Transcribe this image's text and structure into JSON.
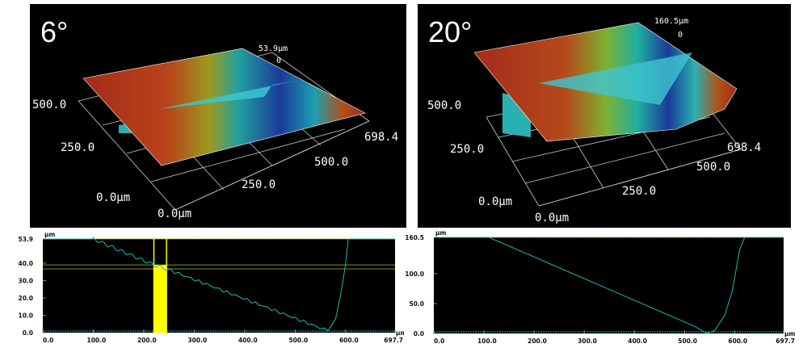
{
  "colors": {
    "surface_high": "#a52a1a",
    "surface_low": "#102a8a",
    "profile_line": "#1fb8b8",
    "cursor": "#ffff00",
    "background": "#000000"
  },
  "panels": [
    {
      "title": "6°",
      "labels": {
        "y_max": "500.0",
        "y_mid": "250.0",
        "y_zero": "0.0µm",
        "x_zero": "0.0µm",
        "x_mid": "250.0",
        "x_500": "500.0",
        "x_max": "698.4",
        "z_max": "53.9µm",
        "z_zero": "0"
      }
    },
    {
      "title": "20°",
      "labels": {
        "y_max": "500.0",
        "y_mid": "250.0",
        "y_zero": "0.0µm",
        "x_zero": "0.0µm",
        "x_mid": "250.0",
        "x_500": "500.0",
        "x_max": "698.4",
        "z_max": "160.5µm",
        "z_zero": "0"
      }
    }
  ],
  "chart_data": [
    {
      "type": "line",
      "ylabel": "µm",
      "xlabel": "µm",
      "xlim": [
        0,
        697.7
      ],
      "ylim": [
        0,
        53.9
      ],
      "x_ticks": [
        "0.0",
        "100.0",
        "200.0",
        "300.0",
        "400.0",
        "500.0",
        "600.0",
        "697.7"
      ],
      "y_ticks": [
        "0.0",
        "10.0",
        "20.0",
        "30.0",
        "40.0",
        "53.9"
      ],
      "y_tick_values": [
        0,
        10,
        20,
        30,
        40,
        53.9
      ],
      "x_tick_values": [
        0,
        100,
        200,
        300,
        400,
        500,
        600,
        697.7
      ],
      "profile": {
        "x": [
          0,
          100,
          220,
          245,
          565,
          580,
          590,
          600,
          605,
          697.7
        ],
        "y": [
          53.9,
          53.9,
          39,
          36.7,
          1,
          8,
          22,
          40,
          53.9,
          53.9
        ]
      },
      "steps": true,
      "cursor_band": [
        220,
        245
      ],
      "cursor_levels": [
        39,
        36.7
      ]
    },
    {
      "type": "line",
      "ylabel": "µm",
      "xlabel": "µm",
      "xlim": [
        0,
        697.7
      ],
      "ylim": [
        0,
        160.5
      ],
      "x_ticks": [
        "0.0",
        "100.0",
        "200.0",
        "300.0",
        "400.0",
        "500.0",
        "600.0",
        "697.7"
      ],
      "y_ticks": [
        "0.0",
        "50.0",
        "100.0",
        "160.5"
      ],
      "y_tick_values": [
        0,
        50,
        100,
        160.5
      ],
      "x_tick_values": [
        0,
        100,
        200,
        300,
        400,
        500,
        600,
        697.7
      ],
      "profile": {
        "x": [
          0,
          110,
          520,
          545,
          560,
          580,
          595,
          610,
          620,
          697.7
        ],
        "y": [
          160.5,
          160.5,
          12,
          0,
          5,
          30,
          70,
          140,
          160.5,
          160.5
        ]
      },
      "steps": false
    }
  ]
}
